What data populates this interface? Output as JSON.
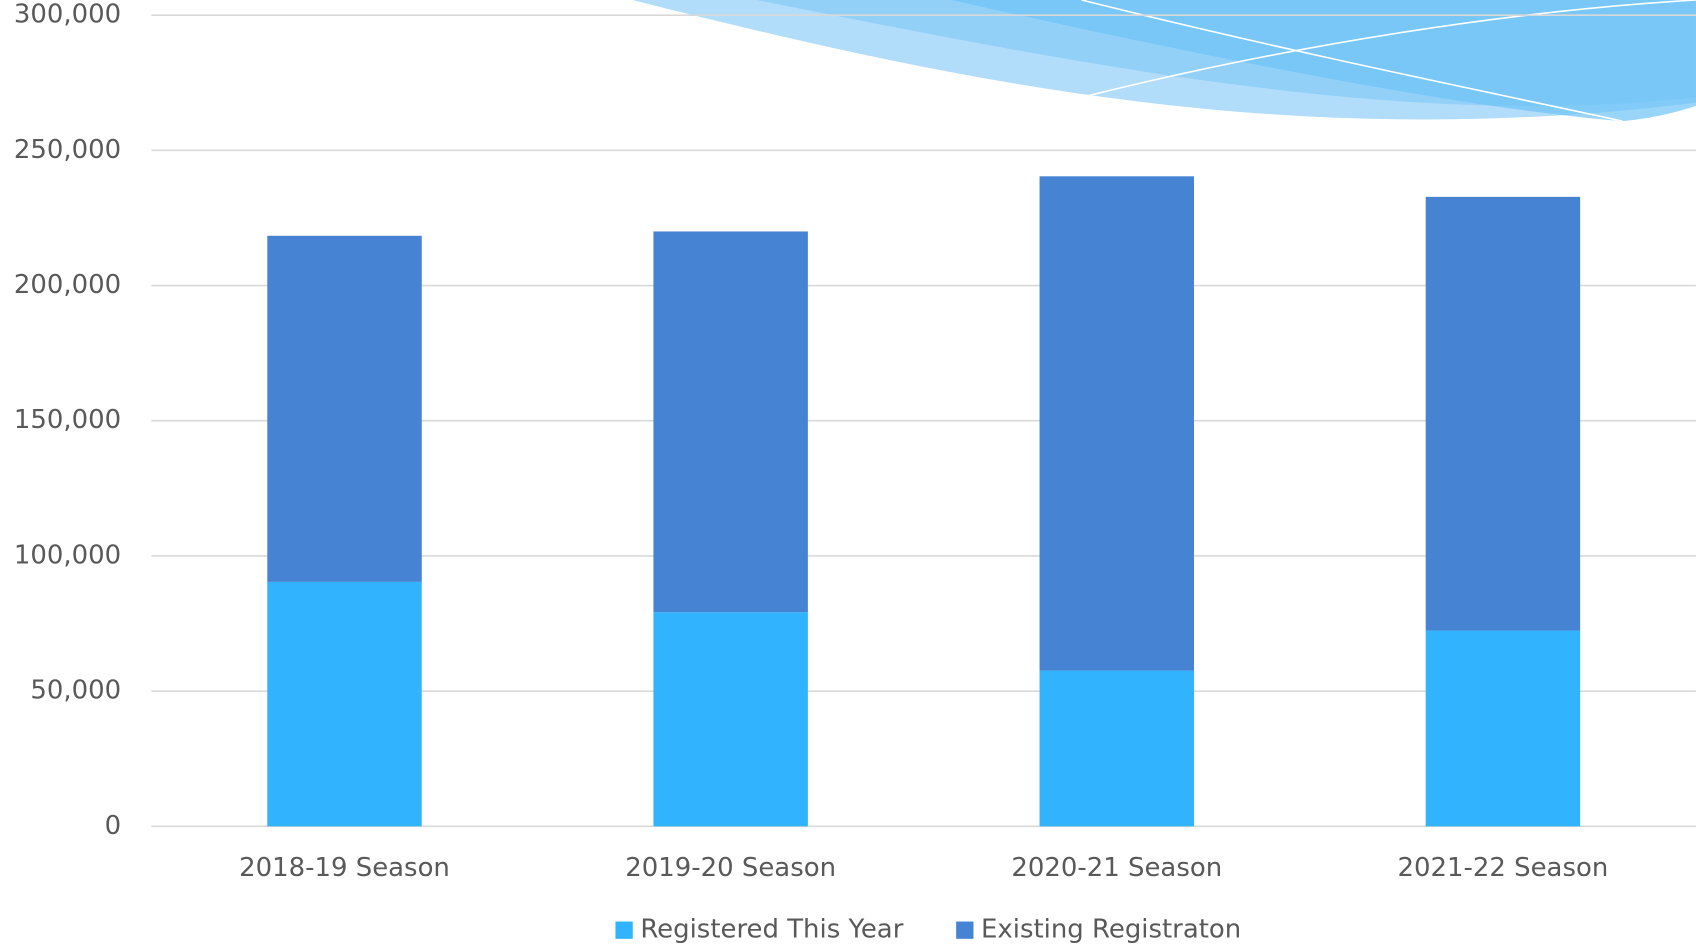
{
  "chart_data": {
    "type": "stacked_bar",
    "categories": [
      "2018-19 Season",
      "2019-20 Season",
      "2020-21 Season",
      "2021-22 Season"
    ],
    "series": [
      {
        "name": "Registered This Year",
        "color": "#31b4fd",
        "values": [
          90400,
          79200,
          57600,
          72400
        ]
      },
      {
        "name": "Existing Registraton",
        "color": "#4683d2",
        "values": [
          128000,
          140800,
          182800,
          160400
        ]
      }
    ],
    "ylim": [
      0,
      300000
    ],
    "yticks": [
      0,
      {
        "value": 50000,
        "label": "50,000"
      },
      {
        "value": 100000,
        "label": "100,000"
      },
      {
        "value": 150000,
        "label": "150,000"
      },
      {
        "value": 200000,
        "label": "200,000"
      },
      {
        "value": 250000,
        "label": "250,000"
      },
      {
        "value": 300000,
        "label": "300,000"
      }
    ],
    "grid": true,
    "legend": "bottom"
  }
}
